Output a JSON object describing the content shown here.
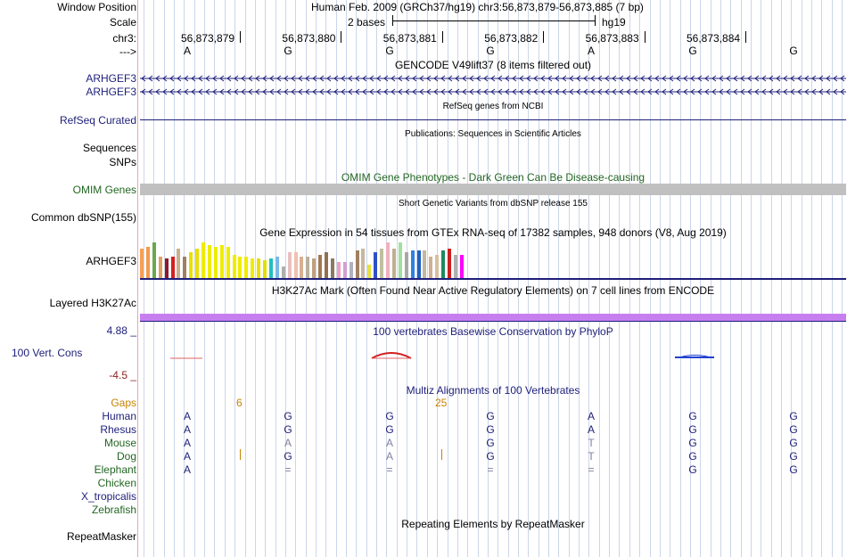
{
  "header": {
    "window_position_label": "Window Position",
    "window_position_value": "Human Feb. 2009 (GRCh37/hg19)   chr3:56,873,879-56,873,885 (7 bp)",
    "scale_label": "Scale",
    "scale_value": "2 bases",
    "assembly": "hg19",
    "chr_label": "chr3:",
    "positions": [
      "56,873,879",
      "56,873,880",
      "56,873,881",
      "56,873,882",
      "56,873,883",
      "56,873,884"
    ],
    "strand_label": "--->",
    "bases": [
      "A",
      "G",
      "G",
      "G",
      "A",
      "G",
      "G"
    ]
  },
  "tracks": {
    "gencode": {
      "title": "GENCODE V49lift37 (8 items filtered out)",
      "items": [
        "ARHGEF3",
        "ARHGEF3"
      ]
    },
    "refseq": {
      "title": "RefSeq genes from NCBI",
      "label": "RefSeq Curated"
    },
    "publications": {
      "title": "Publications: Sequences in Scientific Articles",
      "label": "Sequences"
    },
    "snps": {
      "label": "SNPs"
    },
    "omim": {
      "title": "OMIM Gene Phenotypes - Dark Green Can Be Disease-causing",
      "label": "OMIM Genes",
      "color": "#c0c0c0"
    },
    "dbsnp": {
      "title": "Short Genetic Variants from dbSNP release 155",
      "label": "Common dbSNP(155)"
    },
    "gtex": {
      "title": "Gene Expression in 54 tissues from GTEx RNA-seq of 17382 samples, 948 donors (V8, Aug 2019)",
      "label": "ARHGEF3"
    },
    "h3k27ac": {
      "title": "H3K27Ac Mark (Often Found Near Active Regulatory Elements) on 7 cell lines from ENCODE",
      "label": "Layered H3K27Ac",
      "color": "#c77ff0"
    },
    "phylop": {
      "title": "100 vertebrates Basewise Conservation by PhyloP",
      "label": "100 Vert. Cons",
      "max": "4.88 _",
      "min": "-4.5 _"
    },
    "multiz": {
      "title": "Multiz Alignments of 100 Vertebrates",
      "gaps_label": "Gaps",
      "gap_counts": [
        "6",
        "25"
      ],
      "species": [
        {
          "name": "Human",
          "bases": [
            "A",
            "G",
            "G",
            "G",
            "A",
            "G",
            "G"
          ]
        },
        {
          "name": "Rhesus",
          "bases": [
            "A",
            "G",
            "G",
            "G",
            "A",
            "G",
            "G"
          ]
        },
        {
          "name": "Mouse",
          "bases": [
            "A",
            "A",
            "A",
            "G",
            "T",
            "G",
            "G"
          ]
        },
        {
          "name": "Dog",
          "bases": [
            "A",
            "G",
            "A",
            "G",
            "T",
            "G",
            "G"
          ]
        },
        {
          "name": "Elephant",
          "bases": [
            "A",
            "=",
            "=",
            "=",
            "=",
            "G",
            "G"
          ]
        },
        {
          "name": "Chicken",
          "bases": [
            "",
            "",
            "",
            "",
            "",
            "",
            ""
          ]
        },
        {
          "name": "X_tropicalis",
          "bases": [
            "",
            "",
            "",
            "",
            "",
            "",
            ""
          ]
        },
        {
          "name": "Zebrafish",
          "bases": [
            "",
            "",
            "",
            "",
            "",
            "",
            ""
          ]
        }
      ]
    },
    "repeatmasker": {
      "title": "Repeating Elements by RepeatMasker",
      "label": "RepeatMasker"
    }
  },
  "gtex_bars": [
    {
      "color": "#f5a05a",
      "value": 0.75
    },
    {
      "color": "#f29a4a",
      "value": 0.8
    },
    {
      "color": "#6aa84f",
      "value": 0.9
    },
    {
      "color": "#e0a060",
      "value": 0.55
    },
    {
      "color": "#8b1a2b",
      "value": 0.5
    },
    {
      "color": "#d42020",
      "value": 0.55
    },
    {
      "color": "#c8b090",
      "value": 0.75
    },
    {
      "color": "#a08060",
      "value": 0.55
    },
    {
      "color": "#e8e000",
      "value": 0.65
    },
    {
      "color": "#e8e000",
      "value": 0.75
    },
    {
      "color": "#f0ec00",
      "value": 0.9
    },
    {
      "color": "#f0ec00",
      "value": 0.85
    },
    {
      "color": "#f0ec00",
      "value": 0.8
    },
    {
      "color": "#f0ec00",
      "value": 0.85
    },
    {
      "color": "#f0ec00",
      "value": 0.8
    },
    {
      "color": "#f0ec00",
      "value": 0.6
    },
    {
      "color": "#f0ec00",
      "value": 0.55
    },
    {
      "color": "#f0ec00",
      "value": 0.55
    },
    {
      "color": "#f0ec00",
      "value": 0.5
    },
    {
      "color": "#e8e000",
      "value": 0.5
    },
    {
      "color": "#e0e000",
      "value": 0.45
    },
    {
      "color": "#20c0c0",
      "value": 0.5
    },
    {
      "color": "#7ab8e8",
      "value": 0.55
    },
    {
      "color": "#b0b0b0",
      "value": 0.3
    },
    {
      "color": "#e8c0c0",
      "value": 0.65
    },
    {
      "color": "#f0c0b0",
      "value": 0.65
    },
    {
      "color": "#d8b090",
      "value": 0.55
    },
    {
      "color": "#b8b0a0",
      "value": 0.55
    },
    {
      "color": "#c0a080",
      "value": 0.5
    },
    {
      "color": "#a07850",
      "value": 0.6
    },
    {
      "color": "#907050",
      "value": 0.65
    },
    {
      "color": "#8a7a60",
      "value": 0.5
    },
    {
      "color": "#f0a0c0",
      "value": 0.4
    },
    {
      "color": "#d0a0d0",
      "value": 0.4
    },
    {
      "color": "#b0b0c0",
      "value": 0.4
    },
    {
      "color": "#a08060",
      "value": 0.7
    },
    {
      "color": "#c8b8a0",
      "value": 0.75
    },
    {
      "color": "#e8e040",
      "value": 0.35
    },
    {
      "color": "#3050c8",
      "value": 0.65
    },
    {
      "color": "#c0c0a0",
      "value": 0.75
    },
    {
      "color": "#f0b0c0",
      "value": 0.9
    },
    {
      "color": "#c0b090",
      "value": 0.75
    },
    {
      "color": "#a0e0a0",
      "value": 0.9
    },
    {
      "color": "#a8a8a8",
      "value": 0.65
    },
    {
      "color": "#3080e0",
      "value": 0.7
    },
    {
      "color": "#2060c0",
      "value": 0.7
    },
    {
      "color": "#c0b8a0",
      "value": 0.7
    },
    {
      "color": "#d0b090",
      "value": 0.55
    },
    {
      "color": "#d8c0a0",
      "value": 0.6
    },
    {
      "color": "#208860",
      "value": 0.7
    },
    {
      "color": "#cc2020",
      "value": 0.75
    },
    {
      "color": "#b0b0b0",
      "value": 0.6
    },
    {
      "color": "#ff00ff",
      "value": 0.6
    },
    {
      "color": "#f0e0e0",
      "value": 0.0
    }
  ]
}
